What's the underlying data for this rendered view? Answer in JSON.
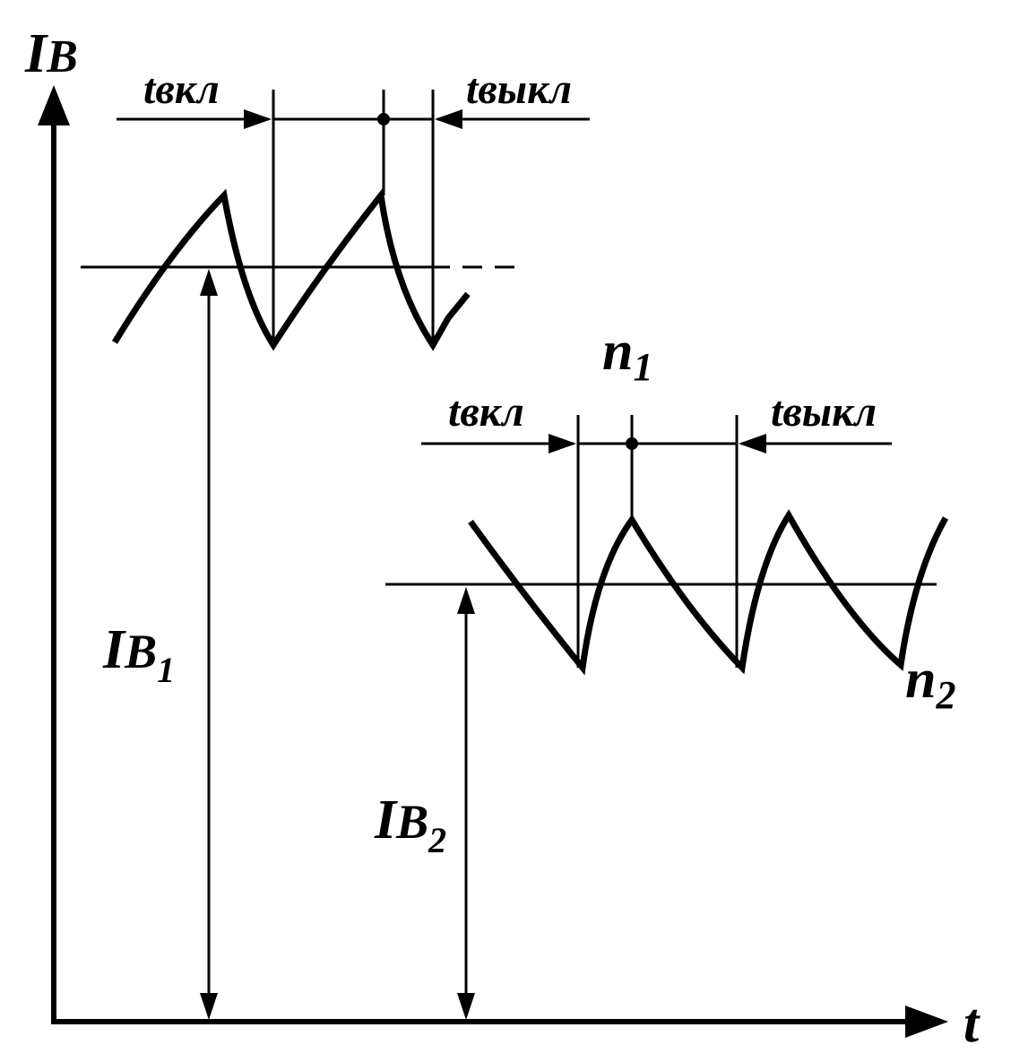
{
  "axes": {
    "y_label": "I",
    "y_label_sub": "B",
    "x_label": "t"
  },
  "upper": {
    "level_label": "I",
    "level_label_sub": "B",
    "level_label_index": "1",
    "t_on_label": "tвкл",
    "t_off_label": "tвыкл"
  },
  "lower": {
    "level_label": "I",
    "level_label_sub": "B",
    "level_label_index": "2",
    "t_on_label": "tвкл",
    "t_off_label": "tвыкл",
    "n1_label": "n",
    "n1_index": "1",
    "n2_label": "n",
    "n2_index": "2"
  },
  "colors": {
    "ink": "#000000",
    "background": "#ffffff"
  }
}
